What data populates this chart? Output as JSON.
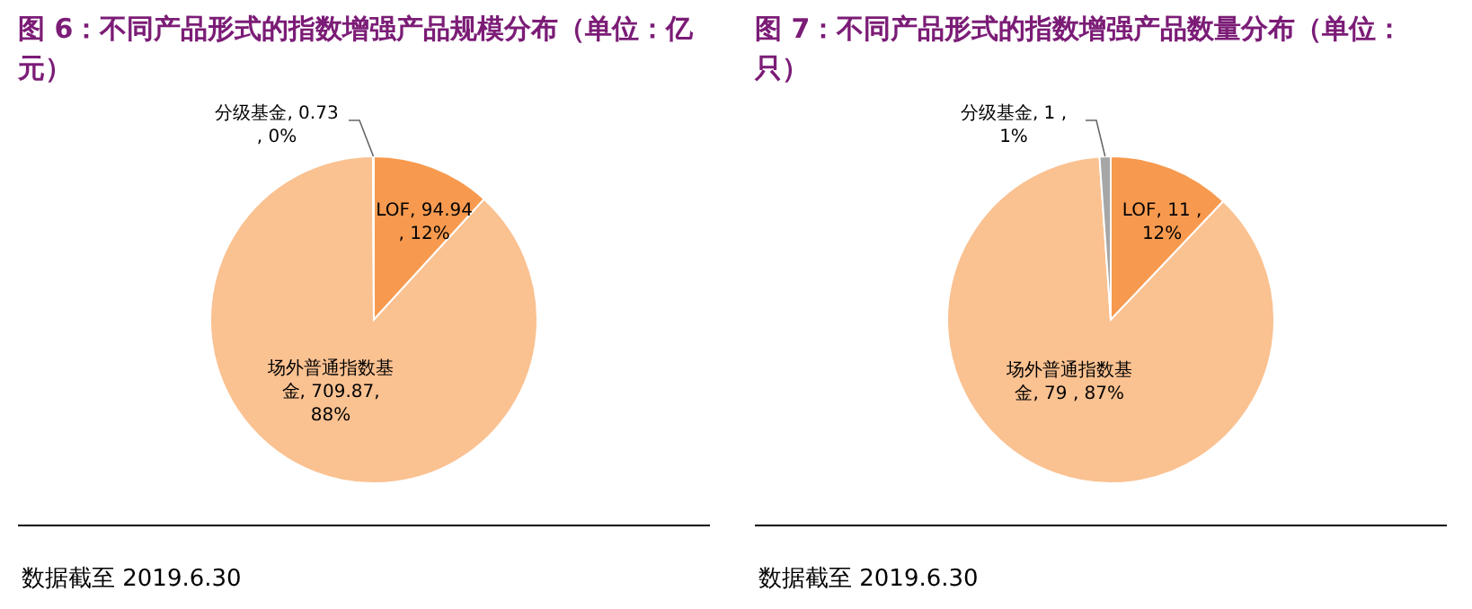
{
  "chart_data": [
    {
      "type": "pie",
      "title": "图 6：不同产品形式的指数增强产品规模分布（单位：亿元）",
      "categories": [
        "LOF",
        "场外普通指数基金",
        "分级基金"
      ],
      "values": [
        94.94,
        709.87,
        0.73
      ],
      "colors": [
        "#f79a4f",
        "#fac191",
        "#a6a6a6"
      ],
      "value_labels": [
        "94.94 , 12%",
        "709.87, 88%",
        "0.73 , 0%"
      ],
      "annotations": [
        "数据截至 2019.6.30"
      ]
    },
    {
      "type": "pie",
      "title": "图 7：不同产品形式的指数增强产品数量分布（单位：只）",
      "categories": [
        "LOF",
        "场外普通指数基金",
        "分级基金"
      ],
      "values": [
        11,
        79,
        1
      ],
      "colors": [
        "#f79a4f",
        "#fac191",
        "#a6a6a6"
      ],
      "value_labels": [
        "11 , 12%",
        "79 , 87%",
        "1 , 1%"
      ],
      "annotations": [
        "数据截至 2019.6.30"
      ]
    }
  ]
}
